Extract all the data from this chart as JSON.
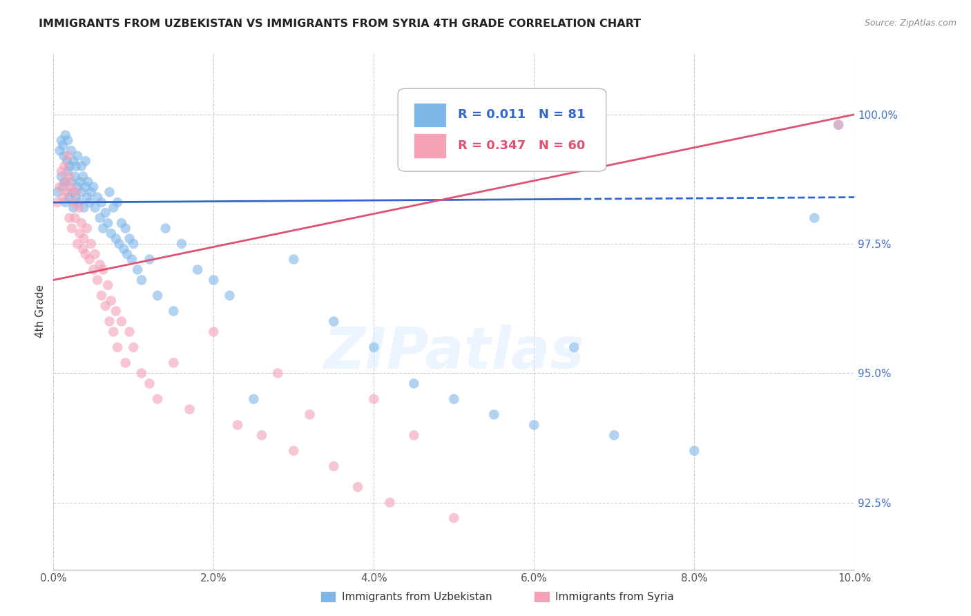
{
  "title": "IMMIGRANTS FROM UZBEKISTAN VS IMMIGRANTS FROM SYRIA 4TH GRADE CORRELATION CHART",
  "source": "Source: ZipAtlas.com",
  "ylabel": "4th Grade",
  "x_tick_labels": [
    "0.0%",
    "2.0%",
    "4.0%",
    "6.0%",
    "8.0%",
    "10.0%"
  ],
  "x_ticks": [
    0.0,
    2.0,
    4.0,
    6.0,
    8.0,
    10.0
  ],
  "y_tick_labels": [
    "92.5%",
    "95.0%",
    "97.5%",
    "100.0%"
  ],
  "y_ticks": [
    92.5,
    95.0,
    97.5,
    100.0
  ],
  "xlim": [
    0.0,
    10.0
  ],
  "ylim": [
    91.2,
    101.2
  ],
  "legend_blue_label": "Immigrants from Uzbekistan",
  "legend_pink_label": "Immigrants from Syria",
  "R_blue": 0.011,
  "N_blue": 81,
  "R_pink": 0.347,
  "N_pink": 60,
  "blue_color": "#7EB6E8",
  "pink_color": "#F4A0B5",
  "blue_line_color": "#3366CC",
  "pink_line_color": "#E05070",
  "watermark": "ZIPatlas",
  "blue_scatter_x": [
    0.05,
    0.08,
    0.1,
    0.1,
    0.12,
    0.12,
    0.13,
    0.14,
    0.15,
    0.15,
    0.17,
    0.18,
    0.18,
    0.2,
    0.2,
    0.22,
    0.22,
    0.23,
    0.25,
    0.25,
    0.27,
    0.28,
    0.28,
    0.3,
    0.3,
    0.32,
    0.33,
    0.35,
    0.35,
    0.37,
    0.38,
    0.4,
    0.4,
    0.42,
    0.43,
    0.45,
    0.47,
    0.5,
    0.52,
    0.55,
    0.58,
    0.6,
    0.62,
    0.65,
    0.68,
    0.7,
    0.72,
    0.75,
    0.78,
    0.8,
    0.82,
    0.85,
    0.88,
    0.9,
    0.92,
    0.95,
    0.98,
    1.0,
    1.05,
    1.1,
    1.2,
    1.3,
    1.4,
    1.5,
    1.6,
    1.8,
    2.0,
    2.2,
    2.5,
    3.0,
    3.5,
    4.0,
    4.5,
    5.0,
    5.5,
    6.0,
    6.5,
    7.0,
    8.0,
    9.5,
    9.8
  ],
  "blue_scatter_y": [
    98.5,
    99.3,
    99.5,
    98.8,
    99.4,
    98.6,
    99.2,
    98.7,
    99.6,
    98.3,
    99.1,
    98.9,
    99.5,
    99.0,
    98.4,
    98.7,
    99.3,
    98.5,
    99.1,
    98.2,
    98.8,
    99.0,
    98.4,
    98.6,
    99.2,
    98.3,
    98.7,
    99.0,
    98.5,
    98.8,
    98.2,
    98.6,
    99.1,
    98.4,
    98.7,
    98.3,
    98.5,
    98.6,
    98.2,
    98.4,
    98.0,
    98.3,
    97.8,
    98.1,
    97.9,
    98.5,
    97.7,
    98.2,
    97.6,
    98.3,
    97.5,
    97.9,
    97.4,
    97.8,
    97.3,
    97.6,
    97.2,
    97.5,
    97.0,
    96.8,
    97.2,
    96.5,
    97.8,
    96.2,
    97.5,
    97.0,
    96.8,
    96.5,
    94.5,
    97.2,
    96.0,
    95.5,
    94.8,
    94.5,
    94.2,
    94.0,
    95.5,
    93.8,
    93.5,
    98.0,
    99.8
  ],
  "pink_scatter_x": [
    0.05,
    0.08,
    0.1,
    0.12,
    0.14,
    0.15,
    0.17,
    0.18,
    0.2,
    0.2,
    0.22,
    0.23,
    0.25,
    0.27,
    0.28,
    0.3,
    0.32,
    0.33,
    0.35,
    0.37,
    0.38,
    0.4,
    0.42,
    0.45,
    0.47,
    0.5,
    0.52,
    0.55,
    0.58,
    0.6,
    0.62,
    0.65,
    0.68,
    0.7,
    0.72,
    0.75,
    0.78,
    0.8,
    0.85,
    0.9,
    0.95,
    1.0,
    1.1,
    1.2,
    1.3,
    1.5,
    1.7,
    2.0,
    2.3,
    2.6,
    2.8,
    3.0,
    3.2,
    3.5,
    3.8,
    4.0,
    4.2,
    4.5,
    5.0,
    9.8
  ],
  "pink_scatter_y": [
    98.3,
    98.6,
    98.9,
    98.4,
    99.0,
    98.7,
    98.5,
    99.2,
    98.8,
    98.0,
    98.6,
    97.8,
    98.3,
    98.0,
    98.5,
    97.5,
    98.2,
    97.7,
    97.9,
    97.4,
    97.6,
    97.3,
    97.8,
    97.2,
    97.5,
    97.0,
    97.3,
    96.8,
    97.1,
    96.5,
    97.0,
    96.3,
    96.7,
    96.0,
    96.4,
    95.8,
    96.2,
    95.5,
    96.0,
    95.2,
    95.8,
    95.5,
    95.0,
    94.8,
    94.5,
    95.2,
    94.3,
    95.8,
    94.0,
    93.8,
    95.0,
    93.5,
    94.2,
    93.2,
    92.8,
    94.5,
    92.5,
    93.8,
    92.2,
    99.8
  ],
  "blue_trendline_x": [
    0.0,
    10.0
  ],
  "blue_trendline_y": [
    98.3,
    98.4
  ],
  "blue_solid_end": 6.5,
  "pink_trendline_x": [
    0.0,
    10.0
  ],
  "pink_trendline_y": [
    96.8,
    100.0
  ]
}
